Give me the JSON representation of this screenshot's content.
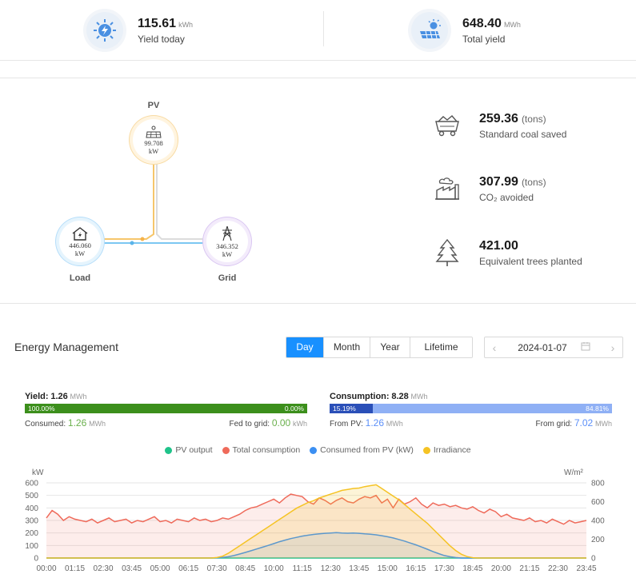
{
  "summary": {
    "yield_today": {
      "value": "115.61",
      "unit": "kWh",
      "label": "Yield today",
      "icon": "bolt-sun-icon"
    },
    "total_yield": {
      "value": "648.40",
      "unit": "MWh",
      "label": "Total yield",
      "icon": "solar-panel-icon"
    }
  },
  "flow": {
    "pv": {
      "label": "PV",
      "value": "99.708",
      "unit": "kW"
    },
    "load": {
      "label": "Load",
      "value": "446.060",
      "unit": "kW"
    },
    "grid": {
      "label": "Grid",
      "value": "346.352",
      "unit": "kW"
    }
  },
  "benefits": [
    {
      "value": "259.36",
      "unit": "(tons)",
      "label": "Standard coal saved",
      "icon": "coal-cart-icon"
    },
    {
      "value": "307.99",
      "unit": "(tons)",
      "label": "CO₂ avoided",
      "icon": "factory-icon"
    },
    {
      "value": "421.00",
      "unit": "",
      "label": "Equivalent trees planted",
      "icon": "tree-icon"
    }
  ],
  "energy": {
    "title": "Energy Management",
    "tabs": [
      "Day",
      "Month",
      "Year",
      "Lifetime"
    ],
    "active_tab": "Day",
    "date": "2024-01-07",
    "yield": {
      "label": "Yield:",
      "value": "1.26",
      "unit": "MWh",
      "bar_left": "100.00%",
      "bar_right": "0.00%",
      "fraction_left": 1.0,
      "consumed_label": "Consumed:",
      "consumed_value": "1.26",
      "consumed_unit": "MWh",
      "fed_label": "Fed to grid:",
      "fed_value": "0.00",
      "fed_unit": "kWh"
    },
    "consumption": {
      "label": "Consumption:",
      "value": "8.28",
      "unit": "MWh",
      "bar_left": "15.19%",
      "bar_right": "84.81%",
      "fraction_left": 0.1519,
      "pv_label": "From PV:",
      "pv_value": "1.26",
      "pv_unit": "MWh",
      "grid_label": "From grid:",
      "grid_value": "7.02",
      "grid_unit": "MWh"
    },
    "colors": {
      "yield_bar": "#3c8f1c",
      "consumption_pv": "#2a4fb8",
      "consumption_grid": "#8fb0f5"
    }
  },
  "chart_data": {
    "type": "line",
    "ylabel": "kW",
    "y2label": "W/m²",
    "ylim": [
      0,
      600
    ],
    "y2lim": [
      0,
      800
    ],
    "yticks": [
      0,
      100,
      200,
      300,
      400,
      500,
      600
    ],
    "y2ticks": [
      0,
      200,
      400,
      600,
      800
    ],
    "xticks": [
      "00:00",
      "01:15",
      "02:30",
      "03:45",
      "05:00",
      "06:15",
      "07:30",
      "08:45",
      "10:00",
      "11:15",
      "12:30",
      "13:45",
      "15:00",
      "16:15",
      "17:30",
      "18:45",
      "20:00",
      "21:15",
      "22:30",
      "23:45"
    ],
    "grid": true,
    "legend_position": "top",
    "series": [
      {
        "name": "PV output",
        "color": "#1fc38a",
        "axis": "left",
        "values": [
          0,
          0,
          0,
          0,
          0,
          0,
          0,
          0,
          0,
          0,
          0,
          0,
          0,
          0,
          0,
          0,
          0,
          0,
          0,
          0,
          0,
          0,
          0,
          0,
          0,
          0,
          0,
          0,
          0,
          0,
          0,
          0,
          0,
          0,
          0,
          0,
          0,
          0,
          0,
          0,
          0,
          0,
          0,
          0,
          0,
          0,
          0,
          0,
          0,
          0,
          0,
          0,
          0,
          0,
          0,
          0,
          0,
          0,
          0,
          0,
          0,
          0,
          0,
          0,
          0,
          0,
          0,
          0,
          0,
          0,
          0,
          0,
          0,
          0,
          0,
          0,
          0,
          0,
          0,
          0,
          0,
          0,
          0,
          0,
          0,
          0,
          0,
          0,
          0,
          0,
          0,
          0,
          0,
          0,
          0,
          0
        ]
      },
      {
        "name": "Total consumption",
        "color": "#ef6a5a",
        "axis": "left",
        "values": [
          320,
          380,
          350,
          300,
          330,
          310,
          300,
          290,
          310,
          280,
          300,
          320,
          290,
          300,
          310,
          280,
          300,
          290,
          310,
          330,
          290,
          300,
          280,
          310,
          300,
          290,
          320,
          300,
          310,
          290,
          300,
          320,
          310,
          330,
          350,
          380,
          400,
          410,
          430,
          450,
          470,
          440,
          480,
          510,
          500,
          490,
          450,
          430,
          480,
          460,
          430,
          460,
          480,
          450,
          440,
          470,
          490,
          480,
          500,
          440,
          470,
          400,
          470,
          430,
          450,
          480,
          430,
          400,
          440,
          420,
          430,
          410,
          420,
          400,
          390,
          410,
          380,
          360,
          390,
          370,
          330,
          350,
          320,
          310,
          300,
          320,
          290,
          300,
          280,
          310,
          290,
          270,
          300,
          280,
          290,
          300
        ]
      },
      {
        "name": "Consumed from PV (kW)",
        "color": "#3b8ff2",
        "axis": "left",
        "values": [
          0,
          0,
          0,
          0,
          0,
          0,
          0,
          0,
          0,
          0,
          0,
          0,
          0,
          0,
          0,
          0,
          0,
          0,
          0,
          0,
          0,
          0,
          0,
          0,
          0,
          0,
          0,
          0,
          0,
          0,
          2,
          5,
          10,
          20,
          32,
          45,
          58,
          72,
          86,
          100,
          115,
          130,
          143,
          155,
          165,
          175,
          182,
          188,
          193,
          197,
          200,
          203,
          200,
          198,
          200,
          197,
          193,
          190,
          185,
          178,
          170,
          160,
          148,
          135,
          120,
          105,
          88,
          70,
          52,
          35,
          20,
          10,
          4,
          0,
          0,
          0,
          0,
          0,
          0,
          0,
          0,
          0,
          0,
          0,
          0,
          0,
          0,
          0,
          0,
          0,
          0,
          0,
          0,
          0,
          0,
          0
        ]
      },
      {
        "name": "Irradiance",
        "color": "#f5c324",
        "axis": "right",
        "values": [
          0,
          0,
          0,
          0,
          0,
          0,
          0,
          0,
          0,
          0,
          0,
          0,
          0,
          0,
          0,
          0,
          0,
          0,
          0,
          0,
          0,
          0,
          0,
          0,
          0,
          0,
          0,
          0,
          0,
          0,
          5,
          20,
          50,
          90,
          130,
          170,
          210,
          250,
          290,
          330,
          370,
          410,
          450,
          490,
          530,
          560,
          590,
          610,
          640,
          660,
          680,
          700,
          720,
          730,
          740,
          745,
          760,
          770,
          780,
          740,
          700,
          660,
          620,
          570,
          520,
          470,
          420,
          370,
          310,
          250,
          190,
          130,
          80,
          40,
          15,
          3,
          0,
          0,
          0,
          0,
          0,
          0,
          0,
          0,
          0,
          0,
          0,
          0,
          0,
          0,
          0,
          0,
          0,
          0,
          0,
          0
        ]
      }
    ]
  }
}
